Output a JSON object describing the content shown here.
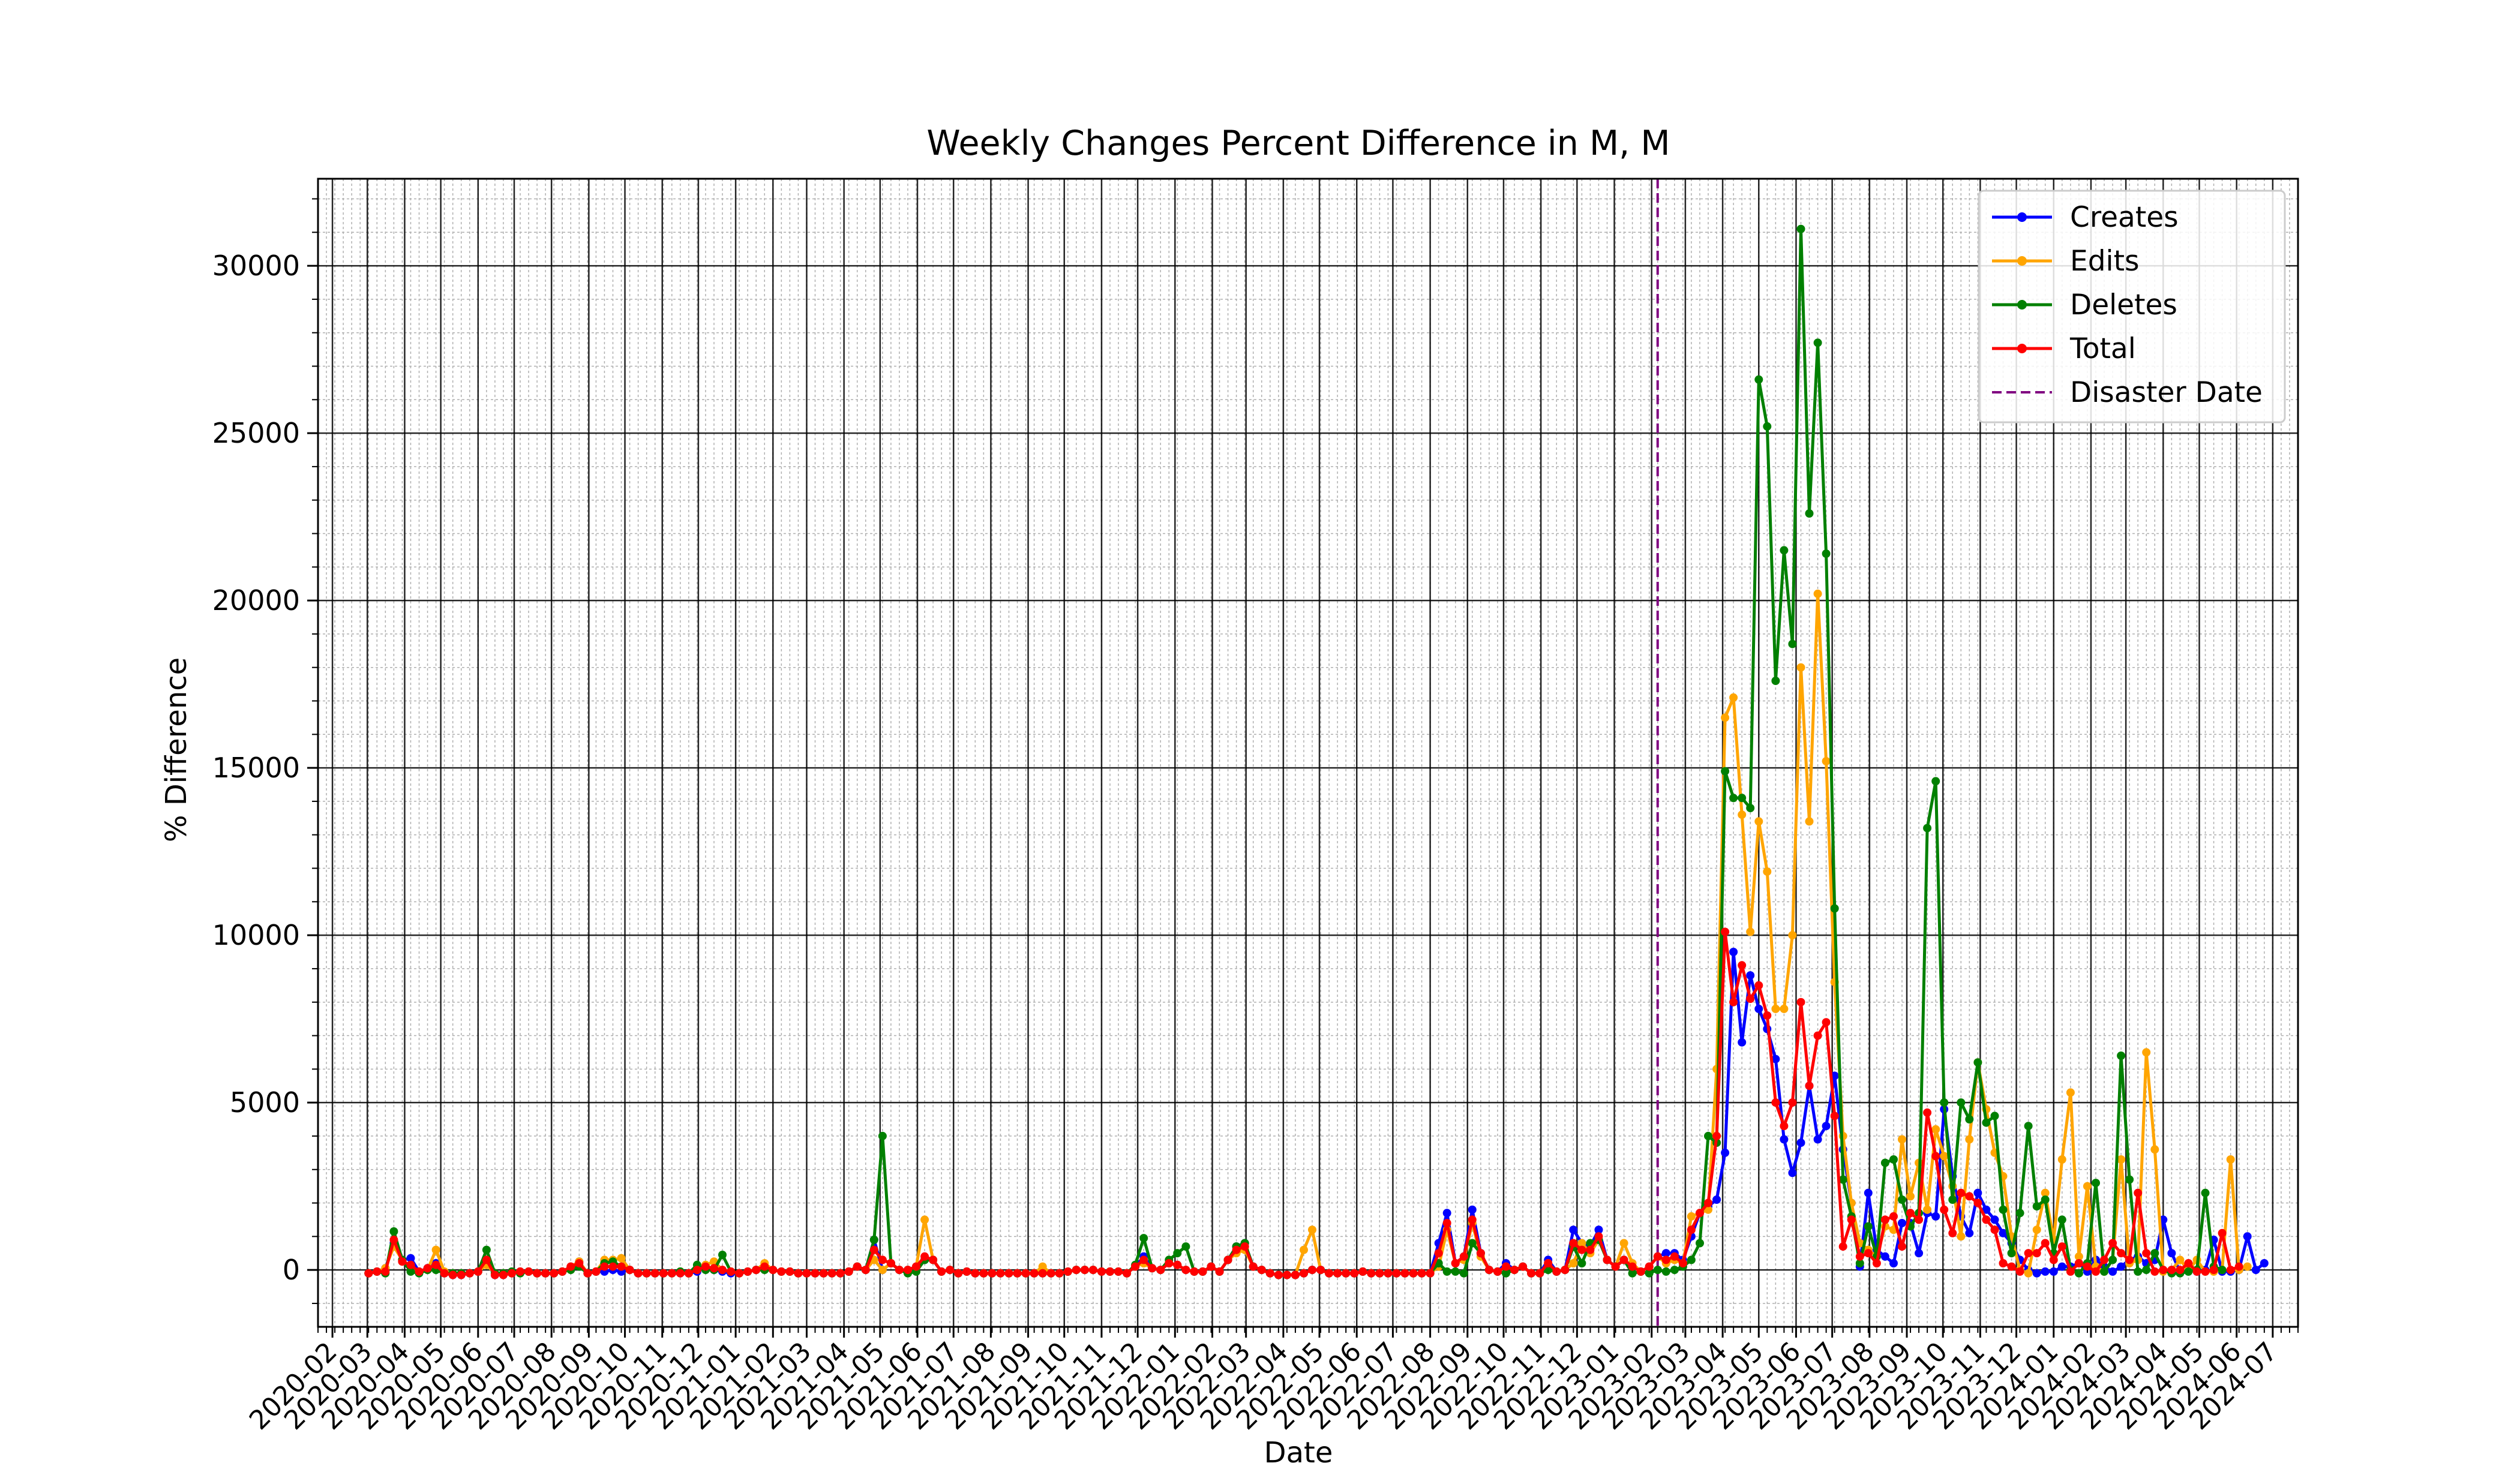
{
  "chart_data": {
    "type": "line",
    "title": "Weekly Changes Percent Difference in M, M",
    "xlabel": "Date",
    "ylabel": "% Difference",
    "x_range": [
      "2020-01-20",
      "2024-07-22"
    ],
    "ylim": [
      -1700,
      32600
    ],
    "y_ticks": [
      0,
      5000,
      10000,
      15000,
      20000,
      25000,
      30000
    ],
    "x_ticks": [
      "2020-02",
      "2020-03",
      "2020-04",
      "2020-05",
      "2020-06",
      "2020-07",
      "2020-08",
      "2020-09",
      "2020-10",
      "2020-11",
      "2020-12",
      "2021-01",
      "2021-02",
      "2021-03",
      "2021-04",
      "2021-05",
      "2021-06",
      "2021-07",
      "2021-08",
      "2021-09",
      "2021-10",
      "2021-11",
      "2021-12",
      "2022-01",
      "2022-02",
      "2022-03",
      "2022-04",
      "2022-05",
      "2022-06",
      "2022-07",
      "2022-08",
      "2022-09",
      "2022-10",
      "2022-11",
      "2022-12",
      "2023-01",
      "2023-02",
      "2023-03",
      "2023-04",
      "2023-05",
      "2023-06",
      "2023-07",
      "2023-08",
      "2023-09",
      "2023-10",
      "2023-11",
      "2023-12",
      "2024-01",
      "2024-02",
      "2024-03",
      "2024-04",
      "2024-05",
      "2024-06",
      "2024-07"
    ],
    "grid": true,
    "legend_position": "top-right",
    "start_date": "2020-03-02",
    "interval_days": 7,
    "disaster_date": "2023-02-06",
    "disaster_label": "Disaster Date",
    "series": [
      {
        "name": "Creates",
        "color": "#0000ff",
        "values": [
          -100,
          -50,
          50,
          800,
          300,
          350,
          -50,
          50,
          200,
          -100,
          -150,
          -150,
          -100,
          -50,
          200,
          -150,
          -150,
          -100,
          -50,
          -50,
          -100,
          -100,
          -100,
          -50,
          100,
          250,
          -100,
          -50,
          -50,
          0,
          -50,
          0,
          -100,
          -100,
          -100,
          -100,
          -100,
          -100,
          -100,
          -50,
          100,
          0,
          -50,
          -100,
          -100,
          -50,
          0,
          100,
          0,
          -50,
          -50,
          -100,
          -100,
          -100,
          -100,
          -100,
          -100,
          -50,
          100,
          0,
          900,
          0,
          200,
          0,
          0,
          100,
          300,
          300,
          -50,
          0,
          -100,
          -50,
          -100,
          -100,
          -100,
          -100,
          -100,
          -100,
          -100,
          -100,
          -100,
          -100,
          -100,
          -50,
          0,
          0,
          0,
          -50,
          -50,
          -50,
          -100,
          100,
          400,
          50,
          0,
          200,
          150,
          0,
          -50,
          -50,
          100,
          -50,
          300,
          700,
          800,
          100,
          0,
          -100,
          -150,
          -150,
          -150,
          -100,
          0,
          0,
          -100,
          -100,
          -100,
          -100,
          -50,
          -100,
          -100,
          -100,
          -100,
          -100,
          -100,
          -100,
          -100,
          800,
          1700,
          200,
          400,
          1800,
          500,
          0,
          -50,
          200,
          0,
          100,
          -100,
          -100,
          300,
          -50,
          0,
          1200,
          800,
          700,
          1200,
          300,
          100,
          300,
          100,
          -50,
          100,
          400,
          500,
          500,
          300,
          1000,
          1700,
          1900,
          2100,
          3500,
          9500,
          6800,
          8800,
          7800,
          7200,
          6300,
          3900,
          2900,
          3800,
          5500,
          3900,
          4300,
          5800,
          3600,
          2000,
          100,
          2300,
          600,
          400,
          200,
          1400,
          1400,
          500,
          1700,
          1600,
          4800,
          2800,
          1600,
          1100,
          2300,
          1800,
          1500,
          1100,
          800,
          300,
          0,
          -100,
          -50,
          -50,
          100,
          100,
          200,
          -50,
          300,
          100,
          -50,
          100,
          300,
          400,
          200,
          300,
          1500,
          500,
          -50,
          0,
          -50,
          0,
          900,
          -50,
          -50,
          0,
          1000,
          0,
          200
        ]
      },
      {
        "name": "Edits",
        "color": "#ffa500",
        "values": [
          -100,
          -50,
          50,
          700,
          300,
          100,
          -50,
          0,
          600,
          -50,
          -100,
          -100,
          -100,
          -50,
          150,
          -100,
          -100,
          -100,
          -50,
          -50,
          -100,
          -100,
          -100,
          -50,
          100,
          250,
          -100,
          -50,
          300,
          300,
          350,
          0,
          -100,
          -100,
          -100,
          -100,
          -100,
          -50,
          -100,
          0,
          150,
          250,
          0,
          -50,
          -100,
          -50,
          0,
          200,
          0,
          -50,
          -50,
          -100,
          -100,
          -100,
          -100,
          -100,
          -100,
          -50,
          100,
          0,
          300,
          0,
          200,
          0,
          0,
          100,
          1500,
          300,
          -50,
          0,
          -100,
          -50,
          -100,
          -100,
          -100,
          -100,
          -100,
          -100,
          -100,
          -100,
          100,
          -100,
          -100,
          -50,
          0,
          0,
          0,
          -50,
          -50,
          -50,
          -100,
          100,
          200,
          50,
          0,
          200,
          150,
          0,
          -50,
          -50,
          100,
          -50,
          300,
          500,
          600,
          100,
          0,
          -100,
          -150,
          -150,
          -150,
          600,
          1200,
          0,
          -100,
          -100,
          -100,
          -100,
          -50,
          -100,
          -100,
          -100,
          -100,
          -100,
          -100,
          -100,
          -100,
          100,
          1200,
          200,
          300,
          1400,
          400,
          0,
          -50,
          100,
          0,
          100,
          -100,
          -100,
          200,
          -50,
          0,
          200,
          800,
          500,
          900,
          300,
          100,
          800,
          200,
          -50,
          100,
          400,
          200,
          300,
          200,
          1600,
          1700,
          1800,
          6000,
          16500,
          17100,
          13600,
          10100,
          13400,
          11900,
          7800,
          7800,
          10000,
          18000,
          13400,
          20200,
          15200,
          8600,
          4000,
          2000,
          800,
          600,
          400,
          1300,
          1200,
          3900,
          2200,
          3200,
          1800,
          4200,
          3400,
          2500,
          1000,
          3900,
          6200,
          4800,
          3500,
          2800,
          1000,
          0,
          -100,
          1200,
          2300,
          900,
          3300,
          5300,
          400,
          2500,
          100,
          -50,
          300,
          3300,
          200,
          300,
          6500,
          3600,
          -50,
          0,
          300,
          0,
          300,
          -50,
          -50,
          0,
          3300,
          0,
          100
        ]
      },
      {
        "name": "Deletes",
        "color": "#008000",
        "values": [
          -100,
          -50,
          -100,
          1150,
          300,
          -50,
          -100,
          0,
          0,
          -100,
          -100,
          -100,
          -100,
          -50,
          600,
          -100,
          -100,
          -50,
          -100,
          -50,
          -100,
          -100,
          -100,
          -50,
          0,
          100,
          -100,
          -50,
          200,
          250,
          100,
          0,
          -100,
          -100,
          -100,
          -100,
          -100,
          -50,
          -100,
          150,
          0,
          0,
          450,
          -50,
          -100,
          -50,
          0,
          0,
          0,
          -50,
          -50,
          -100,
          -100,
          -100,
          -100,
          -100,
          -100,
          -50,
          100,
          0,
          900,
          4000,
          200,
          0,
          -100,
          -50,
          300,
          300,
          -50,
          0,
          -100,
          -50,
          -100,
          -100,
          -100,
          -100,
          -100,
          -100,
          -100,
          -100,
          -100,
          -100,
          -100,
          -50,
          0,
          0,
          0,
          -50,
          -50,
          -50,
          -100,
          150,
          950,
          50,
          0,
          300,
          500,
          700,
          -50,
          -50,
          100,
          -50,
          300,
          700,
          800,
          100,
          0,
          -100,
          -150,
          -150,
          -150,
          -100,
          0,
          0,
          -100,
          -100,
          -100,
          -100,
          -50,
          -100,
          -100,
          -100,
          -100,
          -100,
          -100,
          -100,
          -100,
          200,
          -50,
          -50,
          -100,
          800,
          500,
          0,
          -50,
          -100,
          0,
          100,
          -100,
          -100,
          0,
          -50,
          0,
          700,
          200,
          800,
          900,
          300,
          100,
          300,
          -100,
          -50,
          -100,
          0,
          -50,
          0,
          100,
          300,
          800,
          4000,
          3800,
          14900,
          14100,
          14100,
          13800,
          26600,
          25200,
          17600,
          21500,
          18700,
          31100,
          22600,
          27700,
          21400,
          10800,
          2700,
          1600,
          200,
          1300,
          400,
          3200,
          3300,
          2100,
          1300,
          1700,
          13200,
          14600,
          5000,
          2100,
          5000,
          4500,
          6200,
          4400,
          4600,
          1800,
          500,
          1700,
          4300,
          1900,
          2100,
          500,
          1500,
          0,
          -100,
          200,
          2600,
          -50,
          300,
          6400,
          2700,
          -50,
          0,
          500,
          0,
          -100,
          -100,
          -50,
          0,
          2300,
          100,
          0
        ]
      },
      {
        "name": "Total",
        "color": "#ff0000",
        "values": [
          -100,
          -50,
          -50,
          900,
          250,
          150,
          -50,
          50,
          150,
          -100,
          -150,
          -150,
          -100,
          -50,
          300,
          -150,
          -150,
          -100,
          -50,
          -50,
          -100,
          -100,
          -100,
          -50,
          100,
          200,
          -100,
          -50,
          100,
          100,
          100,
          0,
          -100,
          -100,
          -100,
          -100,
          -100,
          -100,
          -100,
          0,
          100,
          50,
          0,
          -50,
          -100,
          -50,
          0,
          100,
          0,
          -50,
          -50,
          -100,
          -100,
          -100,
          -100,
          -100,
          -100,
          -50,
          100,
          0,
          600,
          300,
          200,
          0,
          0,
          100,
          400,
          300,
          -50,
          0,
          -100,
          -50,
          -100,
          -100,
          -100,
          -100,
          -100,
          -100,
          -100,
          -100,
          -100,
          -100,
          -100,
          -50,
          0,
          0,
          0,
          -50,
          -50,
          -50,
          -100,
          100,
          300,
          50,
          0,
          200,
          150,
          0,
          -50,
          -50,
          100,
          -50,
          300,
          600,
          700,
          100,
          0,
          -100,
          -150,
          -150,
          -150,
          -100,
          0,
          0,
          -100,
          -100,
          -100,
          -100,
          -50,
          -100,
          -100,
          -100,
          -100,
          -100,
          -100,
          -100,
          -100,
          500,
          1400,
          200,
          400,
          1500,
          500,
          0,
          -50,
          100,
          0,
          100,
          -100,
          -100,
          200,
          -50,
          0,
          800,
          600,
          600,
          1000,
          300,
          100,
          300,
          100,
          -50,
          100,
          400,
          300,
          400,
          200,
          1200,
          1700,
          2000,
          4000,
          10100,
          8000,
          9100,
          8100,
          8500,
          7600,
          5000,
          4300,
          5000,
          8000,
          5500,
          7000,
          7400,
          4600,
          700,
          1500,
          400,
          500,
          200,
          1500,
          1600,
          700,
          1700,
          1500,
          4700,
          3400,
          1800,
          1100,
          2300,
          2200,
          2000,
          1500,
          1200,
          200,
          100,
          -50,
          500,
          500,
          800,
          300,
          700,
          -50,
          200,
          100,
          -50,
          300,
          800,
          500,
          300,
          2300,
          500,
          -50,
          0,
          0,
          0,
          200,
          -50,
          -50,
          0,
          1100,
          0,
          100
        ]
      }
    ]
  }
}
